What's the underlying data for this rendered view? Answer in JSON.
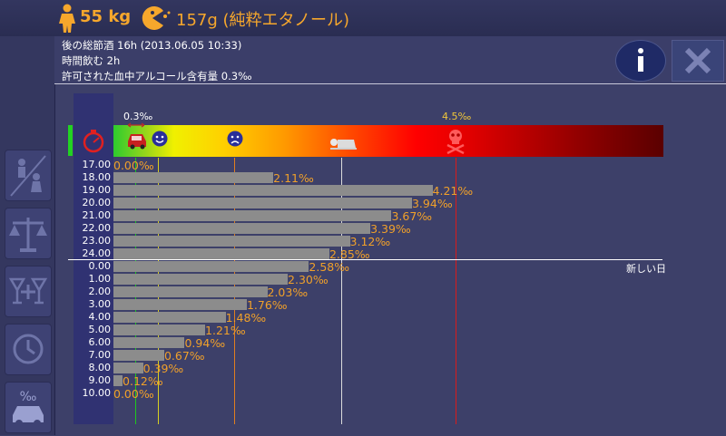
{
  "header": {
    "weight": "55 kg",
    "alcohol": "157g (純粋エタノール)"
  },
  "info": {
    "line1": "後の総節酒 16h (2013.06.05 10:33)",
    "line2": "時間飲む 2h",
    "line3": "許可された血中アルコール含有量 0.3‰"
  },
  "scale": {
    "limit_label": "0.3‰",
    "danger_label": "4.5‰",
    "next_day_label": "新しい日"
  },
  "rows": [
    {
      "time": "17.00",
      "value": "0.00‰",
      "v": 0.0
    },
    {
      "time": "18.00",
      "value": "2.11‰",
      "v": 2.11
    },
    {
      "time": "19.00",
      "value": "4.21‰",
      "v": 4.21
    },
    {
      "time": "20.00",
      "value": "3.94‰",
      "v": 3.94
    },
    {
      "time": "21.00",
      "value": "3.67‰",
      "v": 3.67
    },
    {
      "time": "22.00",
      "value": "3.39‰",
      "v": 3.39
    },
    {
      "time": "23.00",
      "value": "3.12‰",
      "v": 3.12
    },
    {
      "time": "24.00",
      "value": "2.85‰",
      "v": 2.85
    },
    {
      "time": "0.00",
      "value": "2.58‰",
      "v": 2.58
    },
    {
      "time": "1.00",
      "value": "2.30‰",
      "v": 2.3
    },
    {
      "time": "2.00",
      "value": "2.03‰",
      "v": 2.03
    },
    {
      "time": "3.00",
      "value": "1.76‰",
      "v": 1.76
    },
    {
      "time": "4.00",
      "value": "1.48‰",
      "v": 1.48
    },
    {
      "time": "5.00",
      "value": "1.21‰",
      "v": 1.21
    },
    {
      "time": "6.00",
      "value": "0.94‰",
      "v": 0.94
    },
    {
      "time": "7.00",
      "value": "0.67‰",
      "v": 0.67
    },
    {
      "time": "8.00",
      "value": "0.39‰",
      "v": 0.39
    },
    {
      "time": "9.00",
      "value": "0.12‰",
      "v": 0.12
    },
    {
      "time": "10.00",
      "value": "0.00‰",
      "v": 0.0
    }
  ],
  "colors": {
    "accent": "#f6a72c",
    "background": "#3d4069"
  },
  "sidebar_icons": [
    "person-swap-icon",
    "scale-icon",
    "drinks-add-icon",
    "clock-icon",
    "car-permille-icon"
  ]
}
